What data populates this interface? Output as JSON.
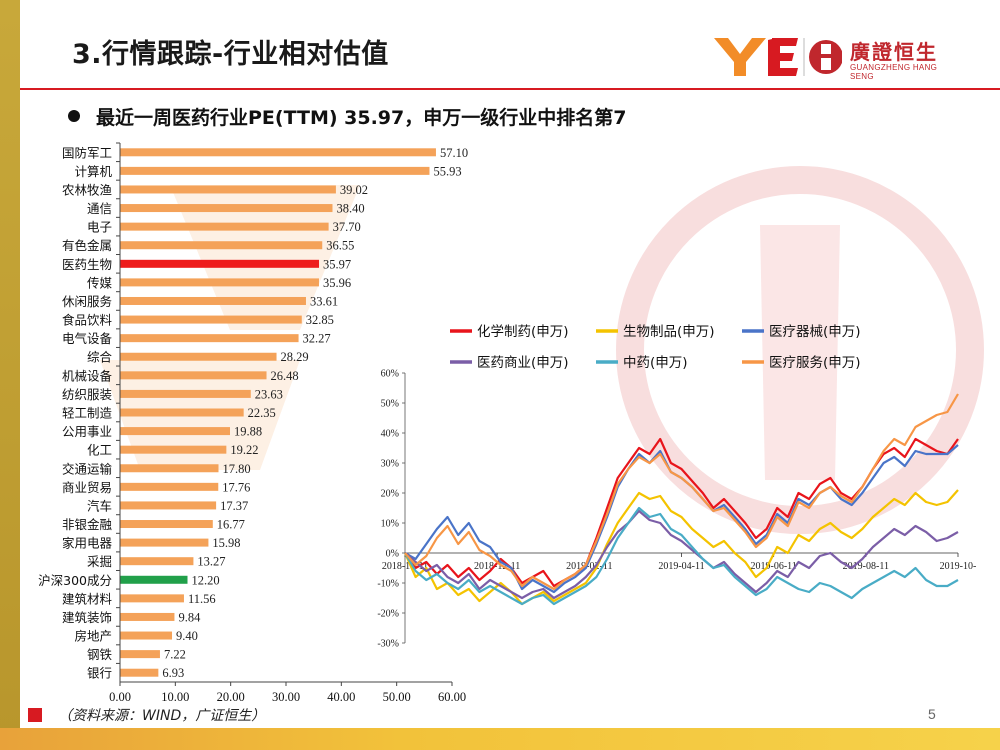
{
  "slide": {
    "title": "3.行情跟踪-行业相对估值",
    "headline": "最近一周医药行业PE(TTM) 35.97，申万一级行业中排名第7",
    "source": "（资料来源：WIND，广证恒生）",
    "page_number": "5"
  },
  "logo": {
    "name": "廣證恒生",
    "sub": "GUANGZHENG HANG SENG",
    "mark": "YE"
  },
  "colors": {
    "bar_default": "#f4a259",
    "bar_highlight": "#ee1c1c",
    "bar_index": "#21a04a",
    "accent_red": "#d71a21",
    "gold": "#c8a83a"
  },
  "chart_data": [
    {
      "type": "bar",
      "orientation": "horizontal",
      "categories": [
        "国防军工",
        "计算机",
        "农林牧渔",
        "通信",
        "电子",
        "有色金属",
        "医药生物",
        "传媒",
        "休闲服务",
        "食品饮料",
        "电气设备",
        "综合",
        "机械设备",
        "纺织服装",
        "轻工制造",
        "公用事业",
        "化工",
        "交通运输",
        "商业贸易",
        "汽车",
        "非银金融",
        "家用电器",
        "采掘",
        "沪深300成分",
        "建筑材料",
        "建筑装饰",
        "房地产",
        "钢铁",
        "银行"
      ],
      "values": [
        57.1,
        55.93,
        39.02,
        38.4,
        37.7,
        36.55,
        35.97,
        35.96,
        33.61,
        32.85,
        32.27,
        28.29,
        26.48,
        23.63,
        22.35,
        19.88,
        19.22,
        17.8,
        17.76,
        17.37,
        16.77,
        15.98,
        13.27,
        12.2,
        11.56,
        9.84,
        9.4,
        7.22,
        6.93
      ],
      "value_labels": [
        "57.10",
        "55.93",
        "39.02",
        "38.40",
        "37.70",
        "36.55",
        "35.97",
        "35.96",
        "33.61",
        "32.85",
        "32.27",
        "28.29",
        "26.48",
        "23.63",
        "22.35",
        "19.88",
        "19.22",
        "17.80",
        "17.76",
        "17.37",
        "16.77",
        "15.98",
        "13.27",
        "12.20",
        "11.56",
        "9.84",
        "9.40",
        "7.22",
        "6.93"
      ],
      "highlight": {
        "医药生物": "bar_highlight",
        "沪深300成分": "bar_index"
      },
      "xlim": [
        0,
        60
      ],
      "xticks": [
        0,
        10,
        20,
        30,
        40,
        50,
        60
      ],
      "xtick_labels": [
        "0.00",
        "10.00",
        "20.00",
        "30.00",
        "40.00",
        "50.00",
        "60.00"
      ]
    },
    {
      "type": "line",
      "x_range_labels": [
        "2018-10-11",
        "2018-12-11",
        "2019-02-11",
        "2019-04-11",
        "2019-06-11",
        "2019-08-11",
        "2019-10-"
      ],
      "ylim": [
        -30,
        60
      ],
      "yticks": [
        -30,
        -20,
        -10,
        0,
        10,
        20,
        30,
        40,
        50,
        60
      ],
      "ytick_labels": [
        "-30%",
        "-20%",
        "-10%",
        "0%",
        "10%",
        "20%",
        "30%",
        "40%",
        "50%",
        "60%"
      ],
      "series": [
        {
          "name": "化学制药(申万)",
          "color": "#e8141b",
          "values": [
            0,
            -5,
            -3,
            -7,
            -4,
            -8,
            -5,
            -9,
            -6,
            -2,
            -5,
            -10,
            -8,
            -6,
            -11,
            -9,
            -7,
            -4,
            5,
            15,
            25,
            30,
            35,
            33,
            38,
            30,
            28,
            24,
            20,
            15,
            18,
            14,
            10,
            5,
            8,
            15,
            12,
            20,
            18,
            23,
            25,
            20,
            18,
            22,
            28,
            33,
            35,
            32,
            38,
            36,
            34,
            33,
            38
          ]
        },
        {
          "name": "生物制品(申万)",
          "color": "#f4c300",
          "values": [
            0,
            -8,
            -5,
            -12,
            -10,
            -14,
            -12,
            -16,
            -13,
            -10,
            -13,
            -17,
            -15,
            -13,
            -16,
            -14,
            -12,
            -10,
            -5,
            3,
            10,
            15,
            20,
            18,
            19,
            14,
            12,
            8,
            5,
            2,
            4,
            0,
            -3,
            -8,
            -5,
            2,
            0,
            6,
            4,
            8,
            10,
            7,
            5,
            8,
            12,
            15,
            18,
            16,
            20,
            17,
            16,
            17,
            21
          ]
        },
        {
          "name": "医疗器械(申万)",
          "color": "#4a74c8",
          "values": [
            0,
            -2,
            3,
            8,
            12,
            6,
            10,
            4,
            2,
            -3,
            -5,
            -12,
            -9,
            -11,
            -13,
            -10,
            -8,
            -5,
            3,
            12,
            22,
            28,
            33,
            30,
            34,
            27,
            25,
            22,
            18,
            14,
            16,
            12,
            8,
            3,
            6,
            13,
            10,
            18,
            16,
            20,
            22,
            18,
            16,
            20,
            25,
            30,
            32,
            29,
            34,
            33,
            33,
            33,
            36
          ]
        },
        {
          "name": "医药商业(申万)",
          "color": "#7b5ea7",
          "values": [
            0,
            -3,
            -6,
            -4,
            -8,
            -10,
            -7,
            -12,
            -9,
            -11,
            -13,
            -15,
            -13,
            -12,
            -15,
            -13,
            -11,
            -8,
            -4,
            2,
            7,
            10,
            14,
            11,
            10,
            6,
            4,
            1,
            -2,
            -5,
            -3,
            -7,
            -10,
            -13,
            -10,
            -6,
            -8,
            -3,
            -5,
            -1,
            0,
            -3,
            -5,
            -2,
            2,
            5,
            8,
            6,
            9,
            7,
            4,
            5,
            7
          ]
        },
        {
          "name": "中药(申万)",
          "color": "#49acc6",
          "values": [
            0,
            -6,
            -9,
            -7,
            -10,
            -12,
            -9,
            -13,
            -11,
            -13,
            -15,
            -17,
            -15,
            -14,
            -17,
            -15,
            -13,
            -11,
            -8,
            -2,
            5,
            10,
            15,
            12,
            13,
            8,
            6,
            2,
            -2,
            -5,
            -4,
            -8,
            -11,
            -14,
            -12,
            -8,
            -10,
            -12,
            -13,
            -10,
            -11,
            -13,
            -15,
            -12,
            -10,
            -8,
            -6,
            -8,
            -5,
            -9,
            -11,
            -11,
            -9
          ]
        },
        {
          "name": "医疗服务(申万)",
          "color": "#f79646",
          "values": [
            0,
            -4,
            -1,
            5,
            9,
            3,
            7,
            1,
            -1,
            -4,
            -6,
            -11,
            -8,
            -10,
            -12,
            -9,
            -7,
            -4,
            4,
            13,
            23,
            28,
            32,
            30,
            33,
            27,
            25,
            22,
            18,
            14,
            15,
            11,
            7,
            2,
            5,
            12,
            9,
            17,
            15,
            20,
            22,
            19,
            17,
            22,
            28,
            34,
            38,
            36,
            42,
            44,
            46,
            47,
            53
          ]
        }
      ]
    }
  ]
}
